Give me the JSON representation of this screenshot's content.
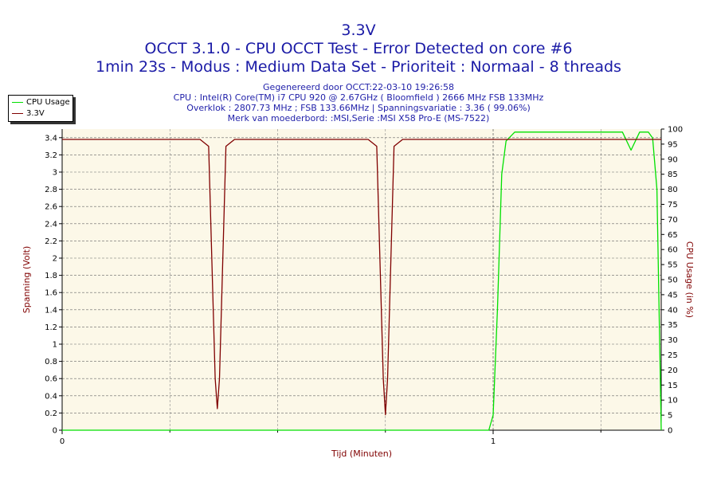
{
  "header": {
    "title": "3.3V",
    "subtitle": "OCCT 3.1.0 - CPU OCCT Test - Error Detected on core #6",
    "subtitle2": "1min 23s - Modus : Medium Data Set - Prioriteit : Normaal - 8 threads",
    "info": [
      "Gegenereerd door OCCT:22-03-10 19:26:58",
      "CPU : Intel(R) Core(TM) i7 CPU 920 @ 2.67GHz ( Bloomfield ) 2666 MHz FSB 133MHz",
      "Overklok : 2807.73 MHz ; FSB 133.66MHz | Spanningsvariatie : 3.36 ( 99.06%)",
      "Merk van moederbord: :MSI,Serie :MSI X58 Pro-E (MS-7522)"
    ]
  },
  "colors": {
    "title": "#1a1aa6",
    "plot_bg": "#fcf8e8",
    "voltage": "#800000",
    "cpu": "#00e000",
    "grid": "#000000",
    "axis_label_left": "#800000",
    "axis_label_right": "#800000"
  },
  "chart_data": {
    "type": "line",
    "xlabel": "Tijd (Minuten)",
    "ylabel": "Spanning (Volt)",
    "y2label": "CPU Usage (in %)",
    "xlim": [
      0,
      1.39
    ],
    "ylim": [
      0,
      3.5
    ],
    "y2lim": [
      0,
      100
    ],
    "x_ticks": [
      0,
      1
    ],
    "x_minor_grid": [
      0.25,
      0.5,
      0.75,
      1.25
    ],
    "y_ticks": [
      0,
      0.2,
      0.4,
      0.6,
      0.8,
      1,
      1.2,
      1.4,
      1.6,
      1.8,
      2,
      2.2,
      2.4,
      2.6,
      2.8,
      3,
      3.2,
      3.4
    ],
    "y_tick_labels": [
      "0",
      "0.2",
      "0.4",
      "0.6",
      "0.8",
      "1",
      "1.2",
      "1.4",
      "1.6",
      "1.8",
      "2",
      "2.2",
      "2.4",
      "2.6",
      "2.8",
      "3",
      "3.2",
      "3.4"
    ],
    "y2_ticks": [
      0,
      5,
      10,
      15,
      20,
      25,
      30,
      35,
      40,
      45,
      50,
      55,
      60,
      65,
      70,
      75,
      80,
      85,
      90,
      95,
      100
    ],
    "grid": true,
    "legend": "top-left",
    "series": [
      {
        "name": "CPU Usage",
        "axis": "right",
        "x": [
          0,
          0.99,
          1.0,
          1.01,
          1.02,
          1.03,
          1.05,
          1.1,
          1.2,
          1.3,
          1.31,
          1.32,
          1.33,
          1.34,
          1.36,
          1.37,
          1.38,
          1.385,
          1.39
        ],
        "y": [
          0,
          0,
          5,
          40,
          85,
          96,
          99,
          99,
          99,
          99,
          96,
          93,
          96,
          99,
          99,
          97,
          80,
          40,
          0
        ]
      },
      {
        "name": "3.3V",
        "axis": "left",
        "x": [
          0,
          0.32,
          0.34,
          0.355,
          0.36,
          0.365,
          0.38,
          0.4,
          0.71,
          0.73,
          0.745,
          0.75,
          0.755,
          0.77,
          0.79,
          1.39
        ],
        "y": [
          3.38,
          3.38,
          3.3,
          0.6,
          0.25,
          0.6,
          3.3,
          3.38,
          3.38,
          3.3,
          0.6,
          0.18,
          0.6,
          3.3,
          3.38,
          3.38
        ]
      }
    ]
  }
}
